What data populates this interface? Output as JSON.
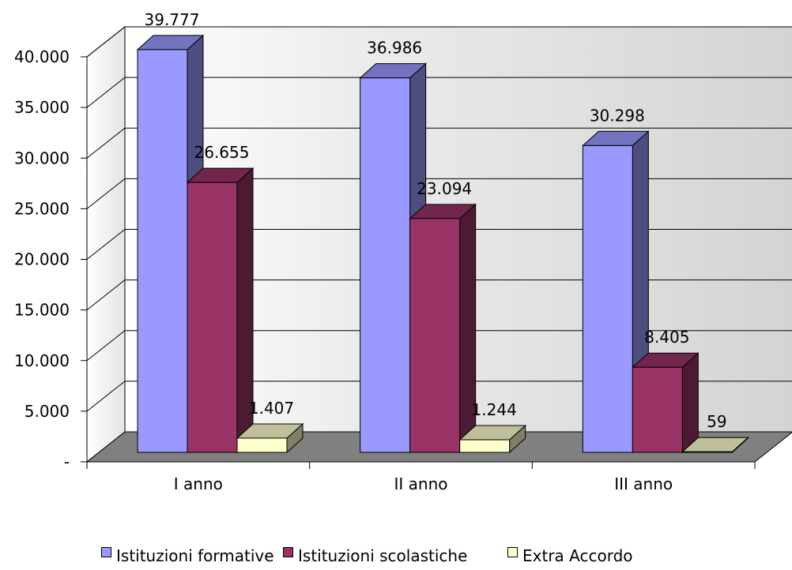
{
  "chart_data": {
    "type": "bar",
    "categories": [
      "I anno",
      "II anno",
      "III anno"
    ],
    "series": [
      {
        "name": "Istituzioni formative",
        "values": [
          39777,
          36986,
          30298
        ],
        "labels": [
          "39.777",
          "36.986",
          "30.298"
        ],
        "color": "#9999FF"
      },
      {
        "name": "Istituzioni scolastiche",
        "values": [
          26655,
          23094,
          8405
        ],
        "labels": [
          "26.655",
          "23.094",
          "8.405"
        ],
        "color": "#993366"
      },
      {
        "name": "Extra Accordo",
        "values": [
          1407,
          1244,
          59
        ],
        "labels": [
          "1.407",
          "1.244",
          "59"
        ],
        "color": "#FFFFCC"
      }
    ],
    "yticks": [
      {
        "value": 0,
        "label": "-"
      },
      {
        "value": 5000,
        "label": "5.000"
      },
      {
        "value": 10000,
        "label": "10.000"
      },
      {
        "value": 15000,
        "label": "15.000"
      },
      {
        "value": 20000,
        "label": "20.000"
      },
      {
        "value": 25000,
        "label": "25.000"
      },
      {
        "value": 30000,
        "label": "30.000"
      },
      {
        "value": 35000,
        "label": "35.000"
      },
      {
        "value": 40000,
        "label": "40.000"
      }
    ],
    "ylim": [
      0,
      40000
    ],
    "title": "",
    "xlabel": "",
    "ylabel": "",
    "grid": true,
    "legend_position": "bottom",
    "floor_color": "#808080",
    "wall_color": "#E6E6E6"
  }
}
